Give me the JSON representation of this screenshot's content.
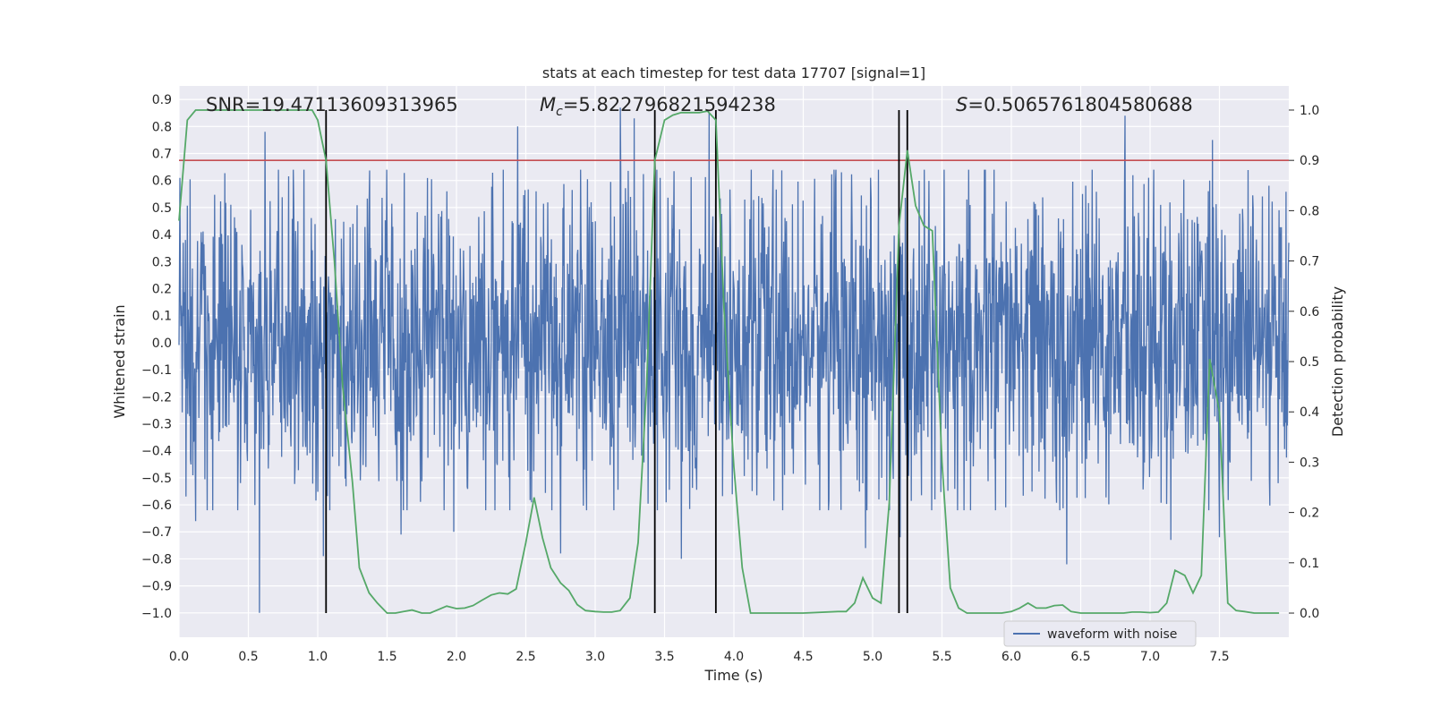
{
  "chart_data": {
    "type": "line",
    "title": "stats at each timestep for test data 17707 [signal=1]",
    "xlabel": "Time (s)",
    "ylabel": "Whitened strain",
    "y2label": "Detection probability",
    "xlim": [
      0,
      8
    ],
    "ylim": [
      -1.09,
      0.95
    ],
    "y2lim": [
      -0.048,
      1.048
    ],
    "xticks": [
      "0.0",
      "0.5",
      "1.0",
      "1.5",
      "2.0",
      "2.5",
      "3.0",
      "3.5",
      "4.0",
      "4.5",
      "5.0",
      "5.5",
      "6.0",
      "6.5",
      "7.0",
      "7.5"
    ],
    "yticks": [
      "0.9",
      "0.8",
      "0.7",
      "0.6",
      "0.5",
      "0.4",
      "0.3",
      "0.2",
      "0.1",
      "0.0",
      "-0.1",
      "-0.2",
      "-0.3",
      "-0.4",
      "-0.5",
      "-0.6",
      "-0.7",
      "-0.8",
      "-0.9",
      "-1.0"
    ],
    "y2ticks": [
      "0.0",
      "0.1",
      "0.2",
      "0.3",
      "0.4",
      "0.5",
      "0.6",
      "0.7",
      "0.8",
      "0.9",
      "1.0"
    ],
    "grid": true,
    "legend": {
      "placement": "lower-right",
      "entries": [
        "waveform with noise"
      ]
    },
    "annotations": {
      "snr": "SNR=19.47113609313965",
      "mc_symbol": "M",
      "mc_sub": "c",
      "mc_value": "=5.822796821594238",
      "s_symbol": "S",
      "s_value": "=0.5065761804580688"
    },
    "threshold": 0.9,
    "vertical_lines": [
      1.06,
      3.43,
      3.87,
      5.19,
      5.25
    ],
    "series": [
      {
        "name": "waveform with noise",
        "axis": "left",
        "color": "#4c72b0",
        "duration": 8,
        "envelope": {
          "core": 0.3,
          "typical_peak": 0.5,
          "min_value": -1.0,
          "max_value": 0.87
        },
        "spikes": [
          {
            "x": 0.58,
            "y": -1.0
          },
          {
            "x": 0.62,
            "y": 0.78
          },
          {
            "x": 0.12,
            "y": -0.66
          },
          {
            "x": 1.04,
            "y": -0.79
          },
          {
            "x": 1.6,
            "y": -0.71
          },
          {
            "x": 1.98,
            "y": -0.7
          },
          {
            "x": 2.44,
            "y": 0.8
          },
          {
            "x": 2.75,
            "y": -0.78
          },
          {
            "x": 3.18,
            "y": 0.87
          },
          {
            "x": 3.28,
            "y": 0.83
          },
          {
            "x": 3.62,
            "y": -0.8
          },
          {
            "x": 3.82,
            "y": 0.85
          },
          {
            "x": 4.95,
            "y": -0.76
          },
          {
            "x": 5.2,
            "y": -0.72
          },
          {
            "x": 5.25,
            "y": 0.72
          },
          {
            "x": 6.4,
            "y": -0.82
          },
          {
            "x": 6.82,
            "y": 0.84
          },
          {
            "x": 7.45,
            "y": 0.75
          },
          {
            "x": 7.5,
            "y": -0.72
          },
          {
            "x": 7.15,
            "y": -0.73
          }
        ]
      },
      {
        "name": "",
        "axis": "right",
        "color": "#55a868",
        "x": [
          0.0,
          0.06,
          0.12,
          0.3,
          0.6,
          0.9,
          0.96,
          1.0,
          1.06,
          1.12,
          1.18,
          1.25,
          1.3,
          1.37,
          1.43,
          1.5,
          1.56,
          1.62,
          1.68,
          1.75,
          1.81,
          1.87,
          1.93,
          2.0,
          2.06,
          2.12,
          2.18,
          2.25,
          2.31,
          2.37,
          2.43,
          2.5,
          2.56,
          2.62,
          2.68,
          2.75,
          2.81,
          2.87,
          2.93,
          3.0,
          3.06,
          3.12,
          3.18,
          3.25,
          3.31,
          3.37,
          3.43,
          3.5,
          3.56,
          3.62,
          3.68,
          3.75,
          3.81,
          3.87,
          3.93,
          4.0,
          4.06,
          4.12,
          4.18,
          4.25,
          4.5,
          4.75,
          4.81,
          4.87,
          4.93,
          5.0,
          5.06,
          5.12,
          5.19,
          5.25,
          5.31,
          5.37,
          5.43,
          5.5,
          5.56,
          5.62,
          5.68,
          5.75,
          5.81,
          5.87,
          5.93,
          6.0,
          6.06,
          6.12,
          6.18,
          6.25,
          6.31,
          6.37,
          6.43,
          6.5,
          6.56,
          6.62,
          6.68,
          6.75,
          6.81,
          6.87,
          6.93,
          7.0,
          7.06,
          7.12,
          7.18,
          7.25,
          7.31,
          7.37,
          7.43,
          7.5,
          7.56,
          7.62,
          7.68,
          7.75,
          7.81,
          7.87,
          7.93
        ],
        "y": [
          0.78,
          0.98,
          1.0,
          1.0,
          1.0,
          1.0,
          1.0,
          0.98,
          0.9,
          0.7,
          0.45,
          0.26,
          0.09,
          0.04,
          0.02,
          0.0,
          0.0,
          0.003,
          0.006,
          0.0,
          0.0,
          0.007,
          0.014,
          0.009,
          0.01,
          0.015,
          0.025,
          0.036,
          0.04,
          0.038,
          0.048,
          0.14,
          0.23,
          0.15,
          0.09,
          0.06,
          0.045,
          0.017,
          0.005,
          0.003,
          0.002,
          0.002,
          0.005,
          0.03,
          0.14,
          0.45,
          0.9,
          0.98,
          0.99,
          0.995,
          0.995,
          0.995,
          0.998,
          0.98,
          0.6,
          0.29,
          0.09,
          0.0,
          0.0,
          0.0,
          0.0,
          0.003,
          0.003,
          0.02,
          0.07,
          0.03,
          0.02,
          0.22,
          0.77,
          0.92,
          0.81,
          0.77,
          0.76,
          0.3,
          0.05,
          0.01,
          0.0,
          0.0,
          0.0,
          0.0,
          0.0,
          0.003,
          0.01,
          0.02,
          0.01,
          0.01,
          0.015,
          0.016,
          0.003,
          0.0,
          0.0,
          0.0,
          0.0,
          0.0,
          0.0,
          0.002,
          0.002,
          0.001,
          0.002,
          0.02,
          0.085,
          0.075,
          0.04,
          0.075,
          0.505,
          0.4,
          0.02,
          0.005,
          0.003,
          0.0,
          0.0,
          0.0,
          0.0
        ]
      },
      {
        "name": "",
        "axis": "right",
        "color": "#c44e52",
        "type": "hline"
      },
      {
        "name": "",
        "axis": "right",
        "color": "#000000",
        "type": "vlines"
      }
    ]
  }
}
